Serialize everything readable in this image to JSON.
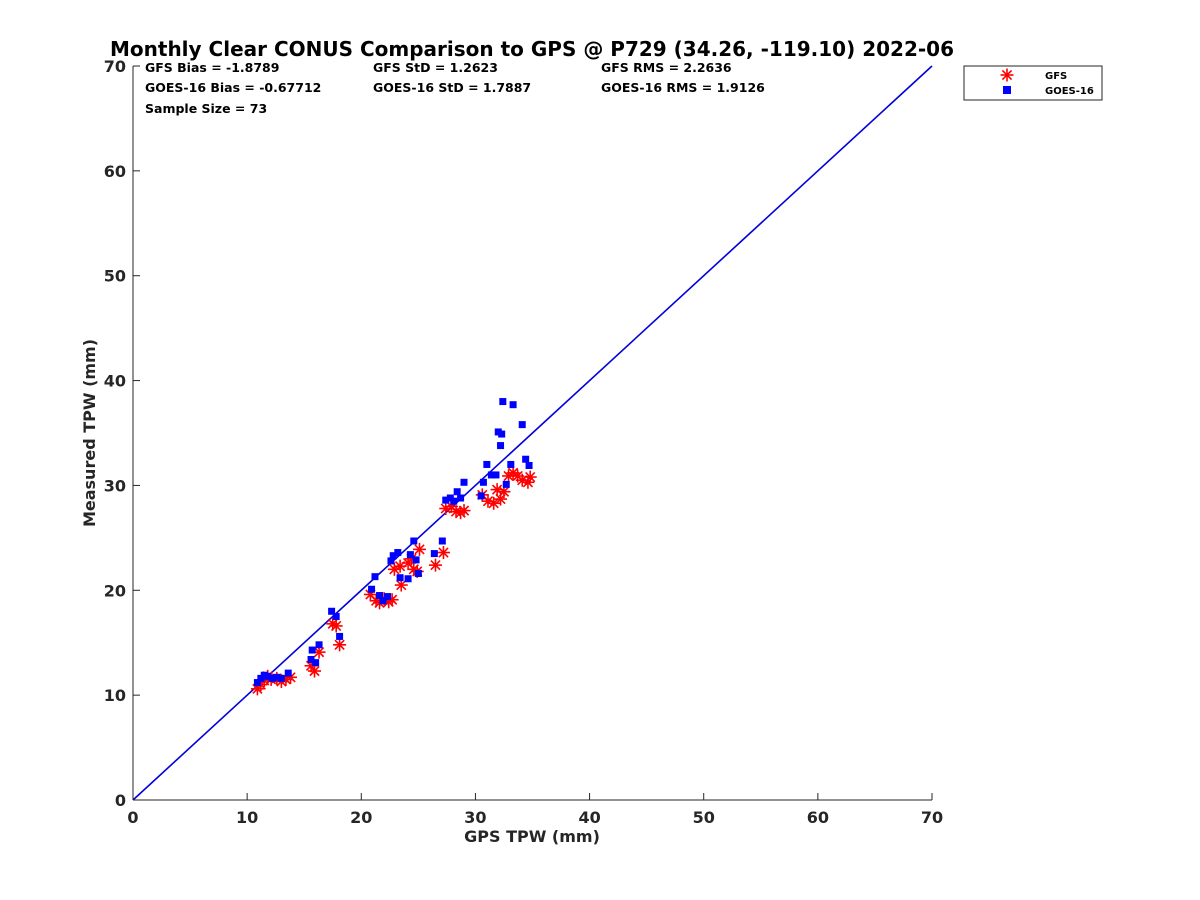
{
  "chart_data": {
    "type": "scatter",
    "title": "Monthly Clear CONUS Comparison to GPS @ P729 (34.26, -119.10) 2022-06",
    "xlabel": "GPS TPW (mm)",
    "ylabel": "Measured TPW (mm)",
    "xlim": [
      0,
      70
    ],
    "ylim": [
      0,
      70
    ],
    "xticks": [
      "0",
      "10",
      "20",
      "30",
      "40",
      "50",
      "60",
      "70"
    ],
    "yticks": [
      "0",
      "10",
      "20",
      "30",
      "40",
      "50",
      "60",
      "70"
    ],
    "grid": false,
    "legend_position": "top-right, outside plot area",
    "stats": {
      "gfs_bias": "GFS Bias = -1.8789",
      "gfs_std": "GFS StD = 1.2623",
      "gfs_rms": "GFS RMS = 2.2636",
      "goes_bias": "GOES-16 Bias = -0.67712",
      "goes_std": "GOES-16 StD = 1.7887",
      "goes_rms": "GOES-16 RMS = 1.9126",
      "sample_size": "Sample Size = 73"
    },
    "reference_line": {
      "label": "",
      "x": [
        0,
        70
      ],
      "y": [
        0,
        70
      ],
      "color": "#0000dd"
    },
    "series": [
      {
        "name": "GFS",
        "marker": "asterisk",
        "color": "#ff0000",
        "points": [
          [
            10.9,
            10.6
          ],
          [
            11.2,
            11.0
          ],
          [
            11.5,
            11.4
          ],
          [
            11.8,
            11.8
          ],
          [
            12.1,
            11.5
          ],
          [
            12.6,
            11.6
          ],
          [
            13.0,
            11.3
          ],
          [
            13.4,
            11.5
          ],
          [
            13.8,
            11.7
          ],
          [
            15.6,
            12.8
          ],
          [
            15.9,
            12.3
          ],
          [
            16.3,
            14.1
          ],
          [
            17.5,
            16.8
          ],
          [
            17.8,
            16.6
          ],
          [
            18.1,
            14.8
          ],
          [
            20.8,
            19.6
          ],
          [
            21.3,
            19.0
          ],
          [
            21.6,
            18.8
          ],
          [
            22.0,
            19.2
          ],
          [
            22.4,
            18.9
          ],
          [
            22.7,
            19.1
          ],
          [
            22.9,
            22.0
          ],
          [
            23.4,
            22.3
          ],
          [
            23.5,
            20.5
          ],
          [
            24.1,
            22.6
          ],
          [
            24.4,
            23.0
          ],
          [
            24.6,
            22.0
          ],
          [
            24.9,
            21.8
          ],
          [
            25.1,
            23.9
          ],
          [
            26.5,
            22.4
          ],
          [
            27.2,
            23.6
          ],
          [
            27.4,
            27.8
          ],
          [
            27.9,
            28.0
          ],
          [
            28.3,
            27.5
          ],
          [
            28.7,
            27.4
          ],
          [
            29.0,
            27.6
          ],
          [
            30.6,
            29.1
          ],
          [
            31.1,
            28.5
          ],
          [
            31.6,
            28.3
          ],
          [
            31.9,
            29.6
          ],
          [
            32.2,
            28.7
          ],
          [
            32.5,
            29.4
          ],
          [
            32.9,
            30.9
          ],
          [
            33.3,
            31.2
          ],
          [
            33.7,
            30.9
          ],
          [
            34.1,
            30.5
          ],
          [
            34.6,
            30.3
          ],
          [
            34.8,
            30.8
          ]
        ]
      },
      {
        "name": "GOES-16",
        "marker": "square",
        "color": "#0000ff",
        "points": [
          [
            10.9,
            11.2
          ],
          [
            11.2,
            11.6
          ],
          [
            11.5,
            11.9
          ],
          [
            11.8,
            11.8
          ],
          [
            12.2,
            11.6
          ],
          [
            12.6,
            11.7
          ],
          [
            13.0,
            11.6
          ],
          [
            13.6,
            12.1
          ],
          [
            15.6,
            13.4
          ],
          [
            15.7,
            14.3
          ],
          [
            16.0,
            13.1
          ],
          [
            16.3,
            14.8
          ],
          [
            17.4,
            18.0
          ],
          [
            17.8,
            17.5
          ],
          [
            18.1,
            15.6
          ],
          [
            20.9,
            20.1
          ],
          [
            21.2,
            21.3
          ],
          [
            21.6,
            19.5
          ],
          [
            21.9,
            19.0
          ],
          [
            22.3,
            19.4
          ],
          [
            22.6,
            22.8
          ],
          [
            22.8,
            23.3
          ],
          [
            23.2,
            23.6
          ],
          [
            23.4,
            21.2
          ],
          [
            24.1,
            21.1
          ],
          [
            24.3,
            23.4
          ],
          [
            24.6,
            24.7
          ],
          [
            24.8,
            22.9
          ],
          [
            25.0,
            21.6
          ],
          [
            26.4,
            23.5
          ],
          [
            27.1,
            24.7
          ],
          [
            27.4,
            28.6
          ],
          [
            27.8,
            28.8
          ],
          [
            28.1,
            28.5
          ],
          [
            28.4,
            29.4
          ],
          [
            28.7,
            28.8
          ],
          [
            29.0,
            30.3
          ],
          [
            30.5,
            29.0
          ],
          [
            30.7,
            30.3
          ],
          [
            31.0,
            32.0
          ],
          [
            31.4,
            31.0
          ],
          [
            31.8,
            31.0
          ],
          [
            32.0,
            35.1
          ],
          [
            32.2,
            33.8
          ],
          [
            32.4,
            38.0
          ],
          [
            32.3,
            34.9
          ],
          [
            32.7,
            30.1
          ],
          [
            33.1,
            32.0
          ],
          [
            33.3,
            37.7
          ],
          [
            34.1,
            35.8
          ],
          [
            34.4,
            32.5
          ],
          [
            34.7,
            31.9
          ]
        ]
      }
    ]
  }
}
